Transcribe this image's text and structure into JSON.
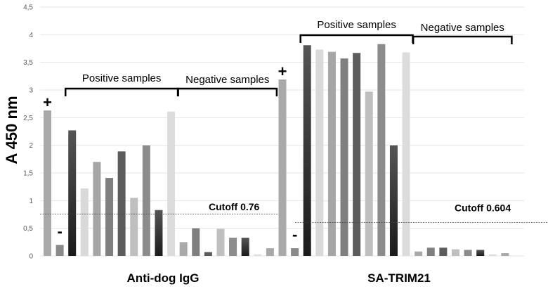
{
  "chart_data": {
    "type": "bar",
    "ylabel": "A 450 nm",
    "ylim": [
      0,
      4.5
    ],
    "yticks": [
      "0",
      "0,5",
      "1",
      "1,5",
      "2",
      "2,5",
      "3",
      "3,5",
      "4",
      "4,5"
    ],
    "ytick_values": [
      0,
      0.5,
      1,
      1.5,
      2,
      2.5,
      3,
      3.5,
      4,
      4.5
    ],
    "grid": true,
    "groups": [
      {
        "name": "Anti-dog IgG",
        "positive_control_label": "+",
        "negative_control_label": "-",
        "positive_control": 2.63,
        "negative_control": 0.2,
        "positive_label": "Positive samples",
        "negative_label": "Negative samples",
        "positive_samples": [
          2.27,
          1.22,
          1.7,
          1.41,
          1.89,
          1.05,
          2.0,
          0.83,
          2.61
        ],
        "negative_samples": [
          0.25,
          0.5,
          0.07,
          0.49,
          0.33,
          0.33,
          0.03,
          0.14
        ],
        "cutoff": 0.76,
        "cutoff_label": "Cutoff 0.76"
      },
      {
        "name": "SA-TRIM21",
        "positive_control_label": "+",
        "negative_control_label": "-",
        "positive_control": 3.19,
        "negative_control": 0.14,
        "positive_label": "Positive samples",
        "negative_label": "Negative samples",
        "positive_samples": [
          3.81,
          3.73,
          3.69,
          3.57,
          3.67,
          2.97,
          3.83,
          2.0,
          3.68
        ],
        "negative_samples": [
          0.08,
          0.15,
          0.15,
          0.12,
          0.11,
          0.11,
          0.03,
          0.05
        ],
        "cutoff": 0.604,
        "cutoff_label": "Cutoff 0.604"
      }
    ],
    "bar_colors": [
      "#a9a9a9",
      "#8a8a8a",
      "#2b2b2b",
      "#d9d9d9",
      "#a6a6a6",
      "#7f7f7f",
      "#5c5c5c",
      "#bfbfbf",
      "#8c8c8c",
      "#222222",
      "#dcdcdc",
      "#a9a9a9",
      "#7f7f7f",
      "#5c5c5c",
      "#bfbfbf",
      "#8c8c8c",
      "#2b2b2b",
      "#e0e0e0",
      "#a9a9a9"
    ]
  }
}
